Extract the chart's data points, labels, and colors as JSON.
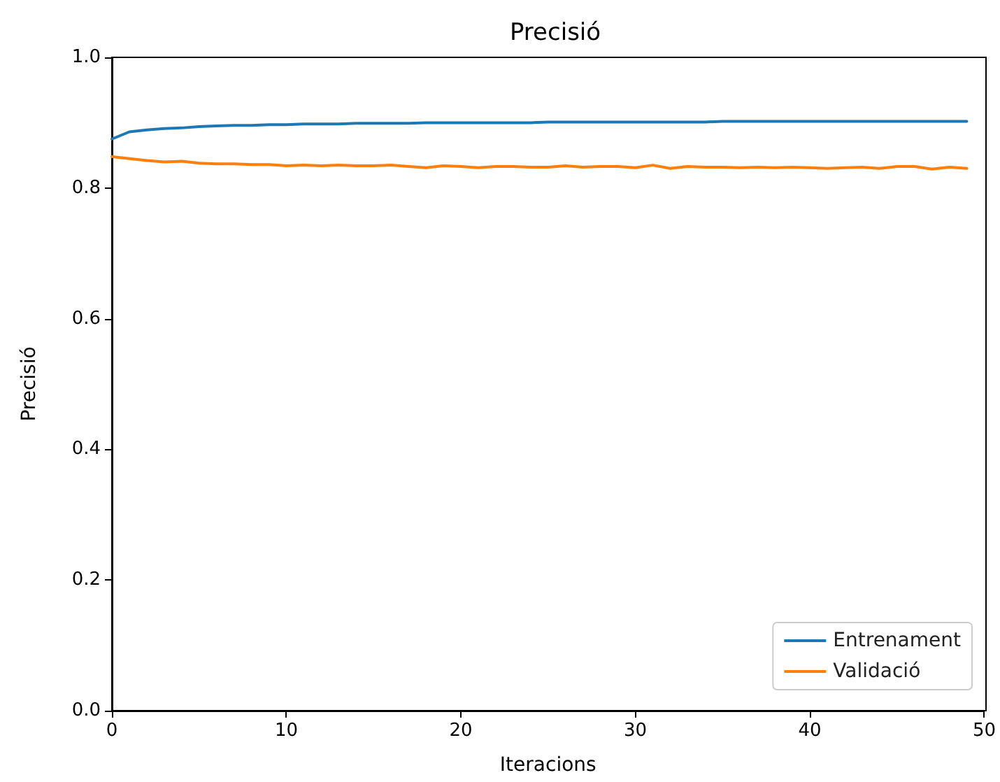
{
  "chart_data": {
    "type": "line",
    "title": "Precisió",
    "xlabel": "Iteracions",
    "ylabel": "Precisió",
    "x": [
      0,
      1,
      2,
      3,
      4,
      5,
      6,
      7,
      8,
      9,
      10,
      11,
      12,
      13,
      14,
      15,
      16,
      17,
      18,
      19,
      20,
      21,
      22,
      23,
      24,
      25,
      26,
      27,
      28,
      29,
      30,
      31,
      32,
      33,
      34,
      35,
      36,
      37,
      38,
      39,
      40,
      41,
      42,
      43,
      44,
      45,
      46,
      47,
      48,
      49
    ],
    "series": [
      {
        "name": "Entrenament",
        "color": "#1f77b4",
        "values": [
          0.875,
          0.886,
          0.889,
          0.891,
          0.892,
          0.894,
          0.895,
          0.896,
          0.896,
          0.897,
          0.897,
          0.898,
          0.898,
          0.898,
          0.899,
          0.899,
          0.899,
          0.899,
          0.9,
          0.9,
          0.9,
          0.9,
          0.9,
          0.9,
          0.9,
          0.901,
          0.901,
          0.901,
          0.901,
          0.901,
          0.901,
          0.901,
          0.901,
          0.901,
          0.901,
          0.902,
          0.902,
          0.902,
          0.902,
          0.902,
          0.902,
          0.902,
          0.902,
          0.902,
          0.902,
          0.902,
          0.902,
          0.902,
          0.902,
          0.902
        ]
      },
      {
        "name": "Validació",
        "color": "#ff7f0e",
        "values": [
          0.848,
          0.845,
          0.842,
          0.84,
          0.841,
          0.838,
          0.837,
          0.837,
          0.836,
          0.836,
          0.834,
          0.835,
          0.834,
          0.835,
          0.834,
          0.834,
          0.835,
          0.833,
          0.831,
          0.834,
          0.833,
          0.831,
          0.833,
          0.833,
          0.832,
          0.832,
          0.834,
          0.832,
          0.833,
          0.833,
          0.831,
          0.835,
          0.83,
          0.833,
          0.832,
          0.832,
          0.831,
          0.832,
          0.831,
          0.832,
          0.831,
          0.83,
          0.831,
          0.832,
          0.83,
          0.833,
          0.833,
          0.829,
          0.832,
          0.83
        ]
      }
    ],
    "xlim": [
      0,
      50
    ],
    "xticks": [
      0,
      10,
      20,
      30,
      40,
      50
    ],
    "ylim": [
      0,
      1
    ],
    "yticks": [
      {
        "value": 0,
        "label": "0.0"
      },
      0.2,
      0.4,
      0.6,
      0.8,
      {
        "value": 1,
        "label": "1.0"
      }
    ],
    "legend": "bottom right",
    "grid": false,
    "marker": "none",
    "line_style": "solid"
  }
}
